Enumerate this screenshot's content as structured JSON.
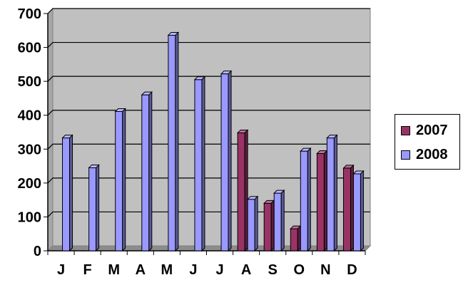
{
  "chart_data": {
    "type": "bar",
    "title": "",
    "xlabel": "",
    "ylabel": "",
    "categories": [
      "J",
      "F",
      "M",
      "A",
      "M",
      "J",
      "J",
      "A",
      "S",
      "O",
      "N",
      "D"
    ],
    "series": [
      {
        "name": "2007",
        "color": "#993366",
        "values": [
          null,
          null,
          null,
          null,
          null,
          null,
          null,
          348,
          140,
          65,
          287,
          244
        ]
      },
      {
        "name": "2008",
        "color": "#9999FF",
        "values": [
          333,
          245,
          411,
          460,
          636,
          505,
          522,
          152,
          170,
          294,
          333,
          227
        ]
      }
    ],
    "ylim": [
      0,
      700
    ],
    "yticks": [
      "0",
      "100",
      "200",
      "300",
      "400",
      "500",
      "600",
      "700"
    ],
    "grid": true,
    "legend_position": "right",
    "plot_background": "#C0C0C0"
  }
}
